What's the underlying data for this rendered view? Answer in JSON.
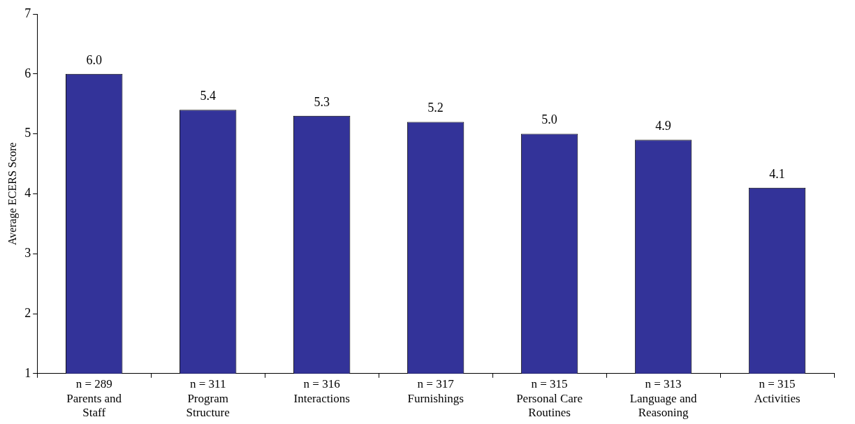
{
  "chart_data": {
    "type": "bar",
    "ylabel": "Average ECERS Score",
    "categories": [
      "n = 289\nParents and\nStaff",
      "n = 311\nProgram\nStructure",
      "n = 316\nInteractions",
      "n = 317\nFurnishings",
      "n = 315\nPersonal Care\nRoutines",
      "n = 313\nLanguage and\nReasoning",
      "n = 315\nActivities"
    ],
    "values": [
      6.0,
      5.4,
      5.3,
      5.2,
      5.0,
      4.9,
      4.1
    ],
    "value_labels": [
      "6.0",
      "5.4",
      "5.3",
      "5.2",
      "5.0",
      "4.9",
      "4.1"
    ],
    "color": "#333399",
    "ylim": [
      1,
      7
    ],
    "yticks": [
      1,
      2,
      3,
      4,
      5,
      6,
      7
    ],
    "grid": false,
    "legend": false
  }
}
